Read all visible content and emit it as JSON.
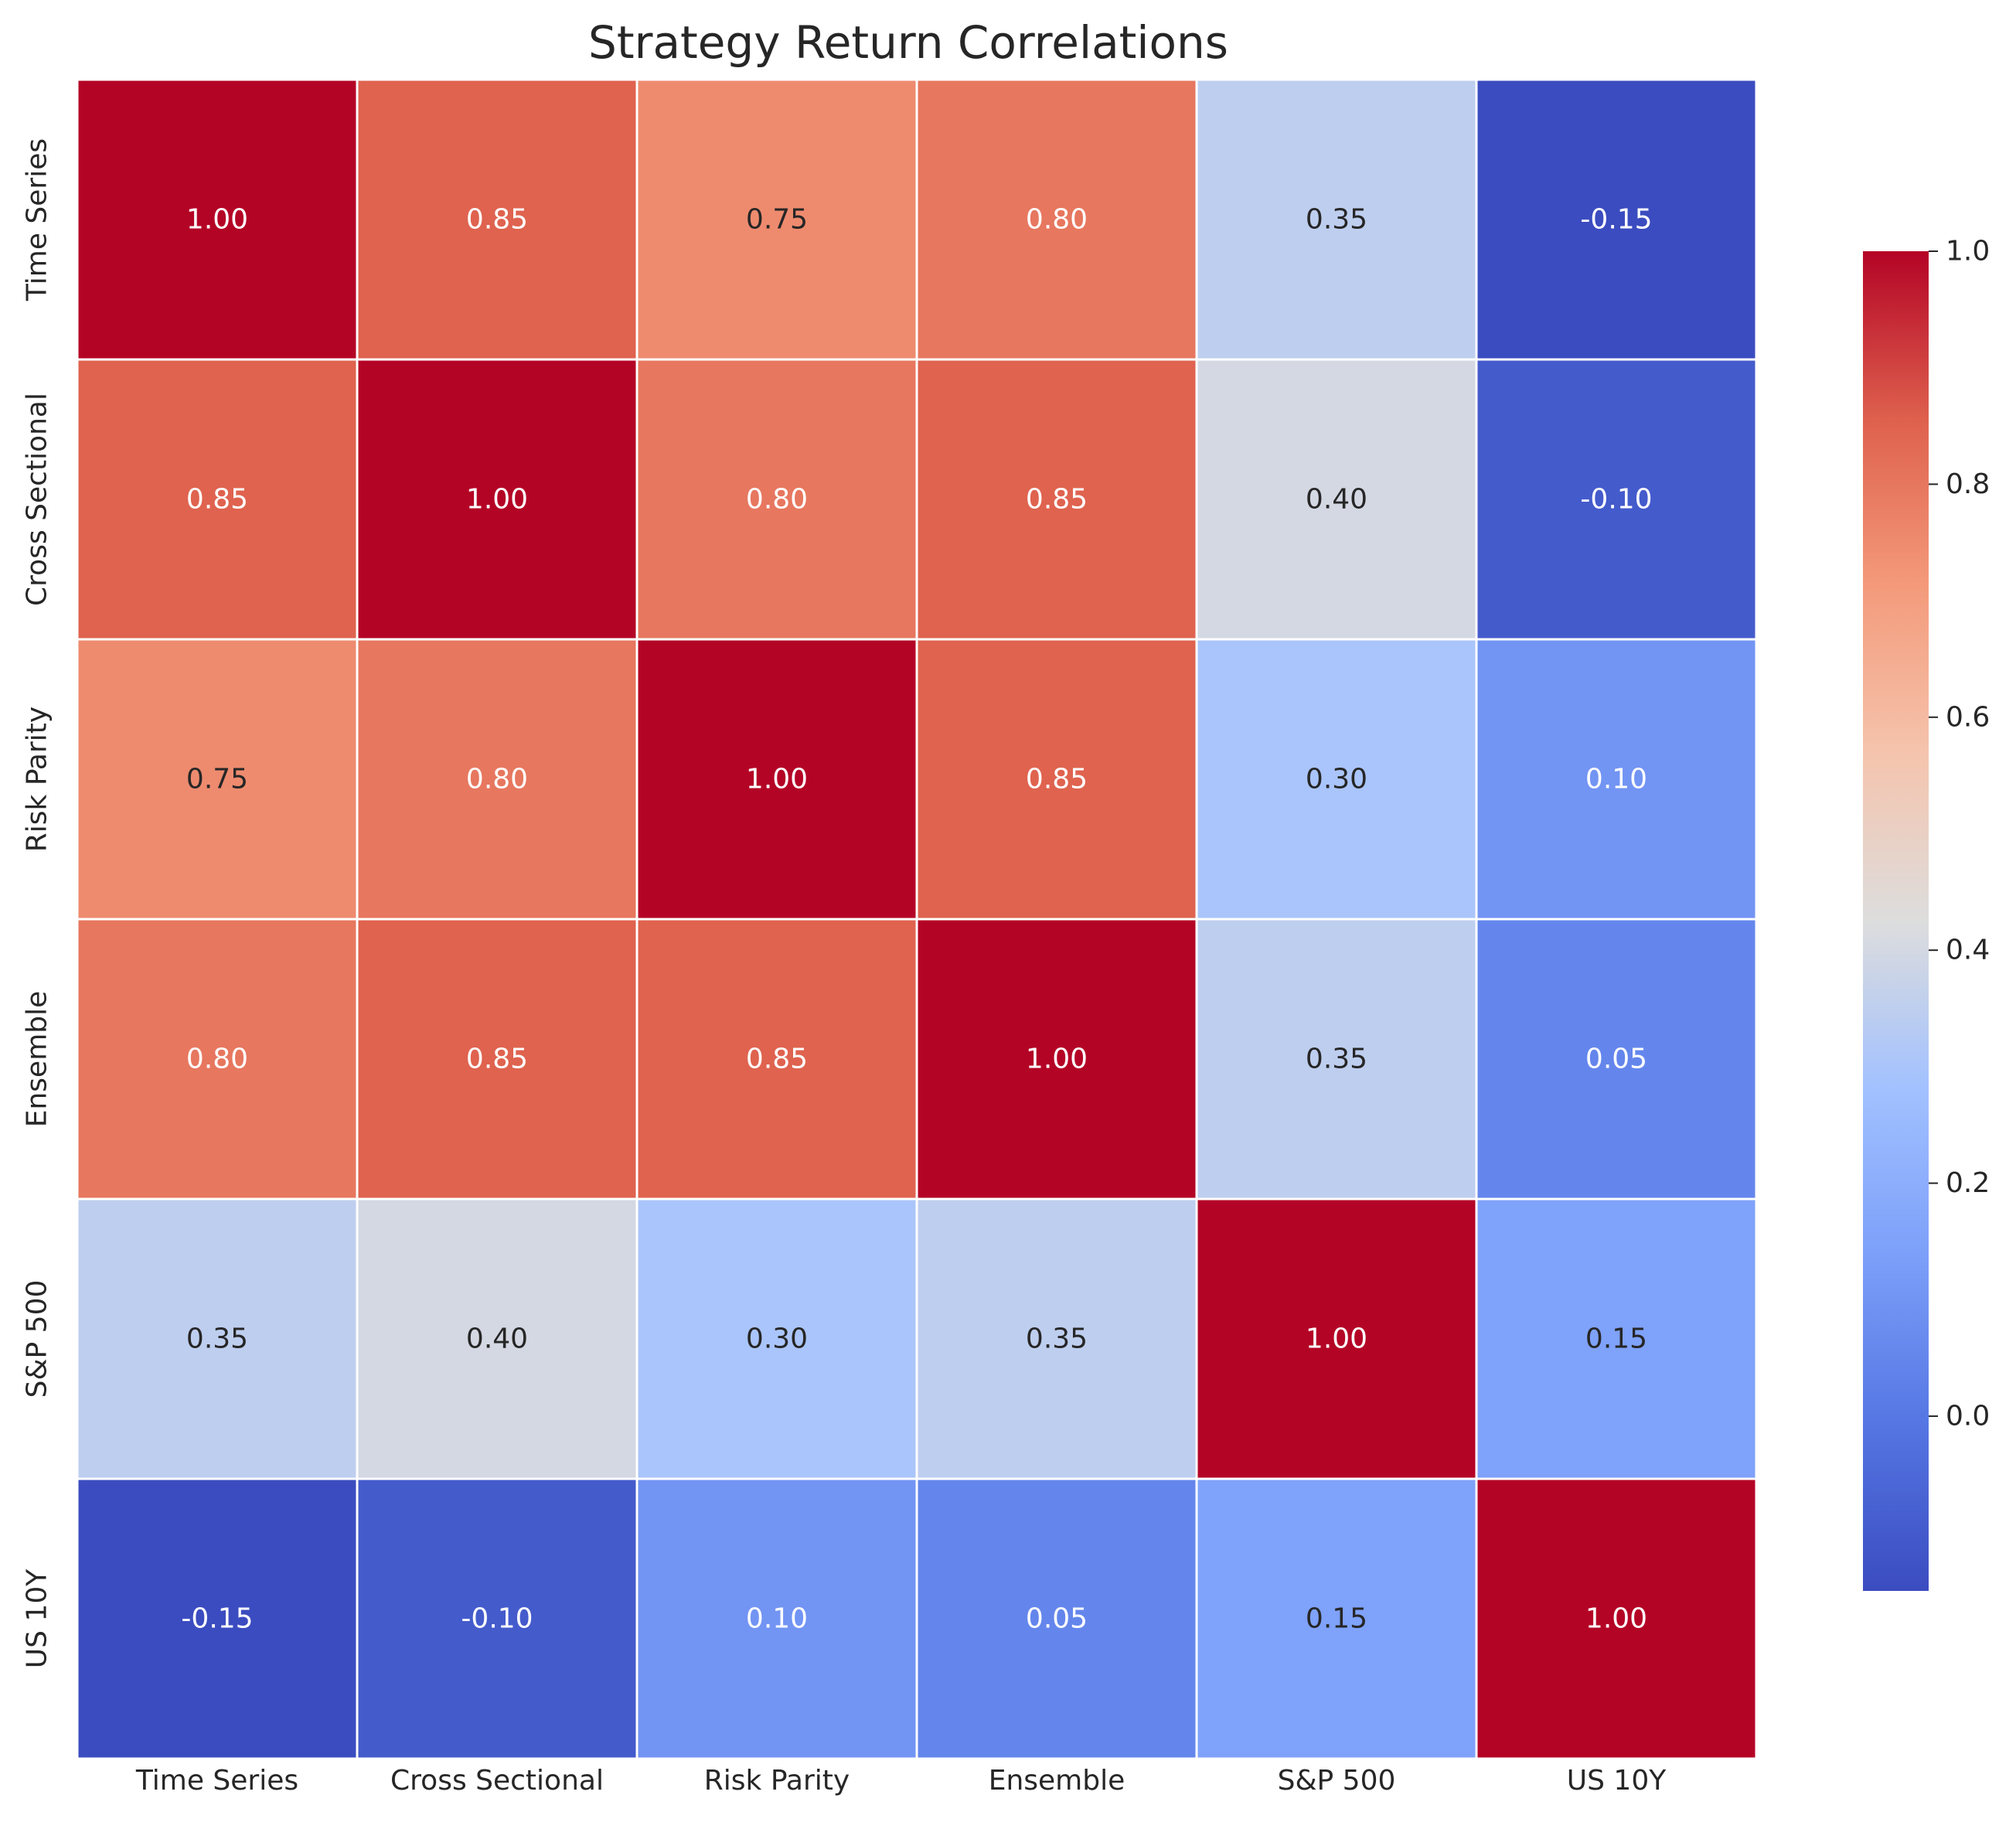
{
  "chart_data": {
    "type": "heatmap",
    "title": "Strategy Return Correlations",
    "xlabel": "",
    "ylabel": "",
    "rows": [
      "Time Series",
      "Cross Sectional",
      "Risk Parity",
      "Ensemble",
      "S&P 500",
      "US 10Y"
    ],
    "columns": [
      "Time Series",
      "Cross Sectional",
      "Risk Parity",
      "Ensemble",
      "S&P 500",
      "US 10Y"
    ],
    "values": [
      [
        1.0,
        0.85,
        0.75,
        0.8,
        0.35,
        -0.15
      ],
      [
        0.85,
        1.0,
        0.8,
        0.85,
        0.4,
        -0.1
      ],
      [
        0.75,
        0.8,
        1.0,
        0.85,
        0.3,
        0.1
      ],
      [
        0.8,
        0.85,
        0.85,
        1.0,
        0.35,
        0.05
      ],
      [
        0.35,
        0.4,
        0.3,
        0.35,
        1.0,
        0.15
      ],
      [
        -0.15,
        -0.1,
        0.1,
        0.05,
        0.15,
        1.0
      ]
    ],
    "value_format": "0.00",
    "colormap": "coolwarm",
    "color_range": [
      -0.15,
      1.0
    ],
    "colorbar_ticks": [
      "1.0",
      "0.8",
      "0.6",
      "0.4",
      "0.2",
      "0.0"
    ],
    "colorbar_tick_values": [
      1.0,
      0.8,
      0.6,
      0.4,
      0.2,
      0.0
    ],
    "grid": false,
    "cell_border_color": "#ffffff"
  }
}
